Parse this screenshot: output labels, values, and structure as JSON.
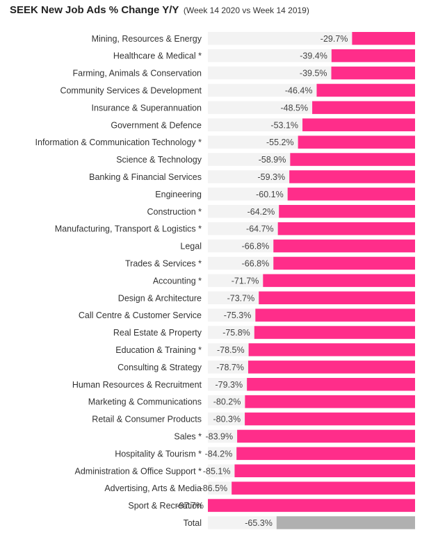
{
  "chart_data": {
    "type": "bar",
    "orientation": "horizontal",
    "title": "SEEK New Job Ads % Change Y/Y",
    "subtitle": "(Week 14 2020 vs Week 14 2019)",
    "xlim": [
      -100,
      0
    ],
    "grid": false,
    "legend": "none",
    "colors": {
      "bar": "#ff2d8a",
      "total": "#b0b0b0",
      "track": "#f3f3f3"
    },
    "categories": [
      "Mining, Resources & Energy",
      "Healthcare & Medical *",
      "Farming, Animals & Conservation",
      "Community Services & Development",
      "Insurance & Superannuation",
      "Government & Defence",
      "Information & Communication Technology *",
      "Science & Technology",
      "Banking & Financial Services",
      "Engineering",
      "Construction *",
      "Manufacturing, Transport & Logistics *",
      "Legal",
      "Trades & Services *",
      "Accounting *",
      "Design & Architecture",
      "Call Centre & Customer Service",
      "Real Estate & Property",
      "Education & Training *",
      "Consulting & Strategy",
      "Human Resources & Recruitment",
      "Marketing & Communications",
      "Retail & Consumer Products",
      "Sales *",
      "Hospitality & Tourism *",
      "Administration & Office Support *",
      "Advertising, Arts & Media",
      "Sport & Recreation",
      "Total"
    ],
    "values": [
      -29.7,
      -39.4,
      -39.5,
      -46.4,
      -48.5,
      -53.1,
      -55.2,
      -58.9,
      -59.3,
      -60.1,
      -64.2,
      -64.7,
      -66.8,
      -66.8,
      -71.7,
      -73.7,
      -75.3,
      -75.8,
      -78.5,
      -78.7,
      -79.3,
      -80.2,
      -80.3,
      -83.9,
      -84.2,
      -85.1,
      -86.5,
      -97.7,
      -65.3
    ],
    "labels": [
      "-29.7%",
      "-39.4%",
      "-39.5%",
      "-46.4%",
      "-48.5%",
      "-53.1%",
      "-55.2%",
      "-58.9%",
      "-59.3%",
      "-60.1%",
      "-64.2%",
      "-64.7%",
      "-66.8%",
      "-66.8%",
      "-71.7%",
      "-73.7%",
      "-75.3%",
      "-75.8%",
      "-78.5%",
      "-78.7%",
      "-79.3%",
      "-80.2%",
      "-80.3%",
      "-83.9%",
      "-84.2%",
      "-85.1%",
      "-86.5%",
      "-97.7%",
      "-65.3%"
    ]
  }
}
